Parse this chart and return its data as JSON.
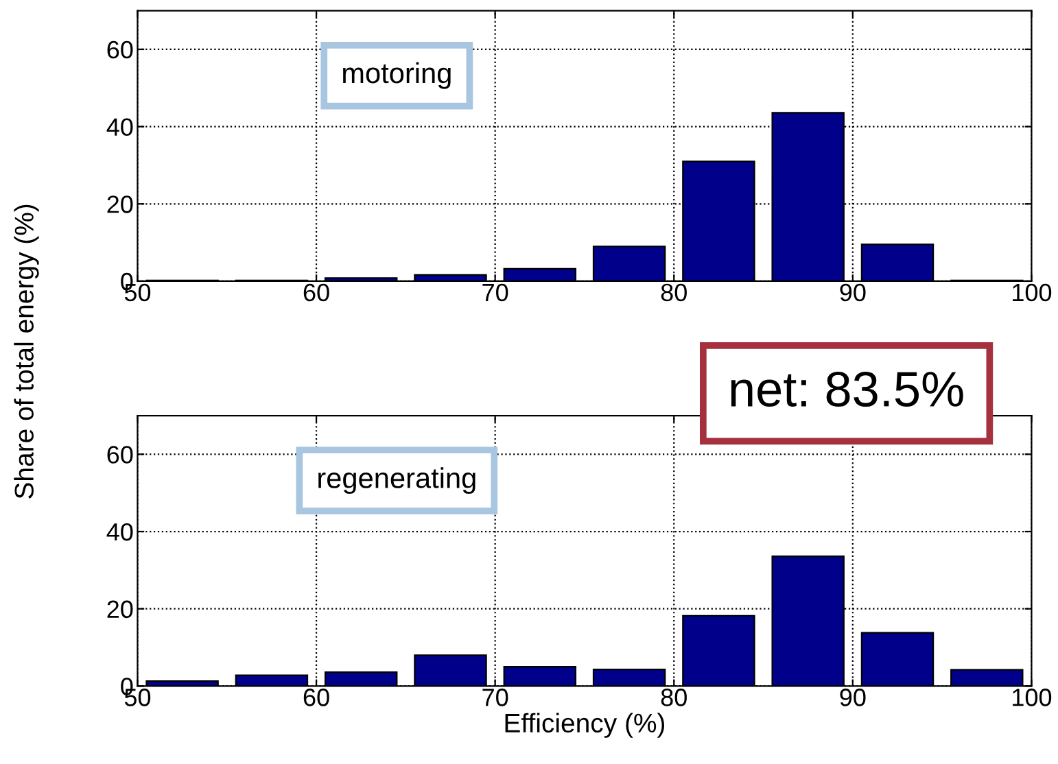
{
  "chart_data": [
    {
      "type": "histogram",
      "bins": [
        50,
        55,
        60,
        65,
        70,
        75,
        80,
        85,
        90,
        95,
        100
      ],
      "values": [
        0.2,
        0.2,
        0.8,
        1.6,
        3.2,
        9,
        31,
        43.6,
        9.5,
        0.2
      ],
      "color": "#00008b",
      "xlim": [
        50,
        100
      ],
      "ylim": [
        0,
        70
      ],
      "xticks": [
        50,
        60,
        70,
        80,
        90,
        100
      ],
      "yticks": [
        0,
        20,
        40,
        60
      ],
      "grid": true,
      "ylabel": "Share of total energy (%)",
      "annotations": [
        "motoring"
      ]
    },
    {
      "type": "histogram",
      "bins": [
        50,
        55,
        60,
        65,
        70,
        75,
        80,
        85,
        90,
        95,
        100
      ],
      "values": [
        1.3,
        2.8,
        3.6,
        8,
        5,
        4.3,
        18.2,
        33.6,
        13.8,
        4.2
      ],
      "color": "#00008b",
      "xlim": [
        50,
        100
      ],
      "ylim": [
        0,
        70
      ],
      "xticks": [
        50,
        60,
        70,
        80,
        90,
        100
      ],
      "yticks": [
        0,
        20,
        40,
        60
      ],
      "grid": true,
      "xlabel": "Efficiency (%)",
      "annotations": [
        "regenerating",
        "net: 83.5%"
      ]
    }
  ]
}
